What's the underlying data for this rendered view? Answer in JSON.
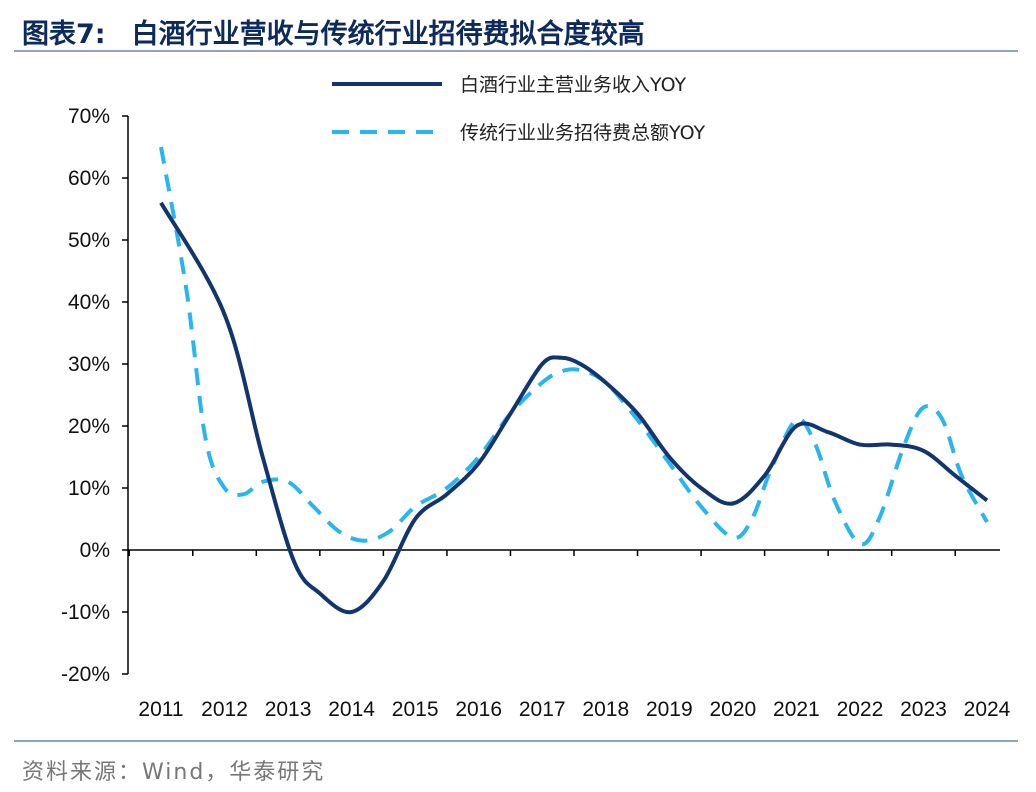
{
  "header": {
    "figure_label": "图表7:",
    "title": "白酒行业营收与传统行业招待费拟合度较高"
  },
  "source": "资料来源：Wind，华泰研究",
  "colors": {
    "series_revenue": "#12356e",
    "series_entertainment": "#29b6ef",
    "axis": "#000000",
    "rule": "#8fa4c2"
  },
  "chart_data": {
    "type": "line",
    "title": "白酒行业营收与传统行业招待费拟合度较高",
    "xlabel": "",
    "ylabel": "",
    "x": [
      "2011",
      "2012",
      "2013",
      "2014",
      "2015",
      "2016",
      "2017",
      "2018",
      "2019",
      "2020",
      "2021",
      "2022",
      "2023",
      "2024"
    ],
    "ylim": [
      -0.2,
      0.7
    ],
    "yticks": [
      "70%",
      "60%",
      "50%",
      "40%",
      "30%",
      "20%",
      "10%",
      "0%",
      "-10%",
      "-20%"
    ],
    "series": [
      {
        "name": "白酒行业主营业务收入YOY",
        "style": "solid",
        "color": "#12356e",
        "points": [
          [
            2011.0,
            0.56
          ],
          [
            2012.0,
            0.38
          ],
          [
            2012.6,
            0.15
          ],
          [
            2013.1,
            -0.02
          ],
          [
            2013.5,
            -0.07
          ],
          [
            2014.0,
            -0.1
          ],
          [
            2014.5,
            -0.05
          ],
          [
            2015.0,
            0.05
          ],
          [
            2015.5,
            0.09
          ],
          [
            2016.0,
            0.14
          ],
          [
            2016.5,
            0.22
          ],
          [
            2017.0,
            0.3
          ],
          [
            2017.3,
            0.31
          ],
          [
            2017.6,
            0.3
          ],
          [
            2018.0,
            0.27
          ],
          [
            2018.5,
            0.22
          ],
          [
            2019.0,
            0.15
          ],
          [
            2019.5,
            0.1
          ],
          [
            2020.0,
            0.075
          ],
          [
            2020.5,
            0.12
          ],
          [
            2021.0,
            0.2
          ],
          [
            2021.5,
            0.19
          ],
          [
            2022.0,
            0.17
          ],
          [
            2022.5,
            0.17
          ],
          [
            2023.0,
            0.16
          ],
          [
            2023.5,
            0.12
          ],
          [
            2024.0,
            0.08
          ]
        ]
      },
      {
        "name": "传统行业业务招待费总额YOY",
        "style": "dashed",
        "color": "#29b6ef",
        "points": [
          [
            2011.0,
            0.65
          ],
          [
            2011.4,
            0.42
          ],
          [
            2011.7,
            0.18
          ],
          [
            2012.0,
            0.1
          ],
          [
            2012.3,
            0.09
          ],
          [
            2012.6,
            0.11
          ],
          [
            2013.0,
            0.11
          ],
          [
            2013.4,
            0.07
          ],
          [
            2013.8,
            0.03
          ],
          [
            2014.2,
            0.015
          ],
          [
            2014.6,
            0.03
          ],
          [
            2015.0,
            0.07
          ],
          [
            2015.5,
            0.1
          ],
          [
            2016.0,
            0.15
          ],
          [
            2016.5,
            0.22
          ],
          [
            2017.0,
            0.27
          ],
          [
            2017.3,
            0.288
          ],
          [
            2017.6,
            0.29
          ],
          [
            2018.0,
            0.27
          ],
          [
            2018.5,
            0.21
          ],
          [
            2019.0,
            0.14
          ],
          [
            2019.5,
            0.07
          ],
          [
            2020.0,
            0.02
          ],
          [
            2020.3,
            0.05
          ],
          [
            2020.6,
            0.13
          ],
          [
            2021.0,
            0.21
          ],
          [
            2021.3,
            0.17
          ],
          [
            2021.6,
            0.08
          ],
          [
            2022.0,
            0.01
          ],
          [
            2022.3,
            0.05
          ],
          [
            2022.7,
            0.17
          ],
          [
            2023.0,
            0.23
          ],
          [
            2023.3,
            0.21
          ],
          [
            2023.6,
            0.12
          ],
          [
            2024.0,
            0.045
          ]
        ]
      }
    ],
    "legend": {
      "position": "top-right",
      "entries": [
        "白酒行业主营业务收入YOY",
        "传统行业业务招待费总额YOY"
      ]
    },
    "grid": false
  }
}
